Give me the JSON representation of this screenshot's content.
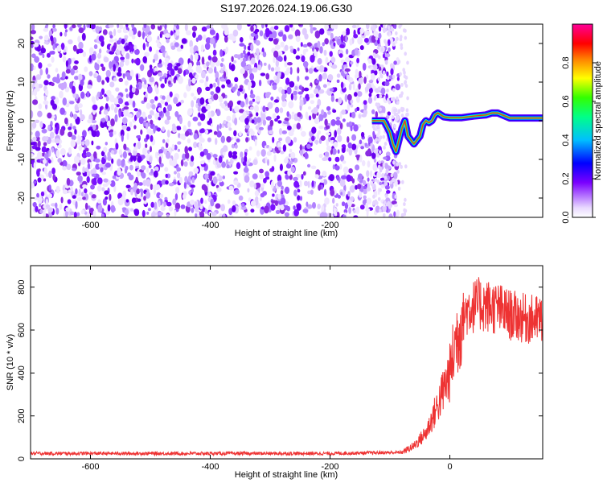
{
  "figure_title": "S197.2026.024.19.06.G30",
  "chart_data": [
    {
      "type": "heatmap",
      "title": "S197.2026.024.19.06.G30",
      "xlabel": "Height of straight line (km)",
      "ylabel": "Frequency (Hz)",
      "xlim": [
        -700,
        155
      ],
      "ylim": [
        -25,
        25
      ],
      "xticks": [
        -600,
        -400,
        -200,
        0
      ],
      "yticks": [
        -20,
        -10,
        0,
        10,
        20
      ],
      "noise_region_x": [
        -700,
        -80
      ],
      "signal_track": {
        "x": [
          -130,
          -110,
          -100,
          -95,
          -90,
          -85,
          -80,
          -75,
          -70,
          -60,
          -50,
          -45,
          -40,
          -35,
          -30,
          -25,
          -20,
          -10,
          0,
          20,
          40,
          60,
          70,
          80,
          100,
          130,
          155
        ],
        "y": [
          0,
          0,
          -3,
          -6,
          -8,
          -5,
          -2,
          0,
          -4,
          -6,
          -4,
          -1,
          0,
          -0.5,
          0,
          1.5,
          2,
          1,
          0.8,
          0.8,
          1.2,
          1.5,
          2,
          2,
          0.7,
          0.7,
          0.7
        ]
      },
      "colorbar": {
        "label": "Normalized spectral amplitude",
        "range": [
          0.0,
          1.0
        ],
        "ticks": [
          "0.0",
          "0.2",
          "0.4",
          "0.6",
          "0.8"
        ]
      }
    },
    {
      "type": "line",
      "xlabel": "Height of straight line (km)",
      "ylabel": "SNR (10 * v/v)",
      "xlim": [
        -700,
        155
      ],
      "ylim": [
        0,
        900
      ],
      "xticks": [
        -600,
        -400,
        -200,
        0
      ],
      "yticks": [
        0,
        200,
        400,
        600,
        800
      ],
      "color": "#ee3333",
      "series": [
        {
          "name": "SNR",
          "x": [
            -700,
            -200,
            -80,
            -60,
            -40,
            -20,
            0,
            10,
            20,
            30,
            50,
            80,
            100,
            130,
            155
          ],
          "y": [
            25,
            25,
            30,
            60,
            120,
            250,
            400,
            550,
            650,
            700,
            720,
            700,
            670,
            650,
            650
          ]
        }
      ]
    }
  ]
}
